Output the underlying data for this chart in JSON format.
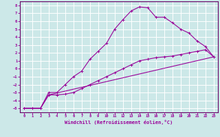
{
  "xlabel": "Windchill (Refroidissement éolien,°C)",
  "background_color": "#cce8e8",
  "grid_color": "#ffffff",
  "line_color": "#990099",
  "spine_color": "#660066",
  "xlim": [
    -0.5,
    23.5
  ],
  "ylim": [
    -5.5,
    8.5
  ],
  "xticks": [
    0,
    1,
    2,
    3,
    4,
    5,
    6,
    7,
    8,
    9,
    10,
    11,
    12,
    13,
    14,
    15,
    16,
    17,
    18,
    19,
    20,
    21,
    22,
    23
  ],
  "yticks": [
    -5,
    -4,
    -3,
    -2,
    -1,
    0,
    1,
    2,
    3,
    4,
    5,
    6,
    7,
    8
  ],
  "line1_x": [
    0,
    1,
    2,
    3,
    4,
    5,
    6,
    7,
    8,
    9,
    10,
    11,
    12,
    13,
    14,
    15,
    16,
    17,
    18,
    19,
    20,
    21,
    22,
    23
  ],
  "line1_y": [
    -5.0,
    -5.0,
    -5.0,
    -3.0,
    -3.0,
    -2.0,
    -1.0,
    -0.3,
    1.2,
    2.2,
    3.2,
    5.0,
    6.2,
    7.3,
    7.8,
    7.7,
    6.5,
    6.5,
    5.8,
    5.0,
    4.5,
    3.5,
    2.8,
    1.5
  ],
  "line2_x": [
    0,
    1,
    2,
    3,
    4,
    5,
    6,
    7,
    8,
    9,
    10,
    11,
    12,
    13,
    14,
    15,
    16,
    17,
    18,
    19,
    20,
    21,
    22,
    23
  ],
  "line2_y": [
    -5.0,
    -5.0,
    -5.0,
    -3.3,
    -3.3,
    -3.2,
    -3.0,
    -2.5,
    -2.0,
    -1.5,
    -1.0,
    -0.5,
    0.0,
    0.5,
    1.0,
    1.2,
    1.4,
    1.5,
    1.6,
    1.8,
    2.0,
    2.2,
    2.4,
    1.5
  ],
  "line3_x": [
    0,
    2,
    3,
    23
  ],
  "line3_y": [
    -5.0,
    -5.0,
    -3.3,
    1.5
  ]
}
